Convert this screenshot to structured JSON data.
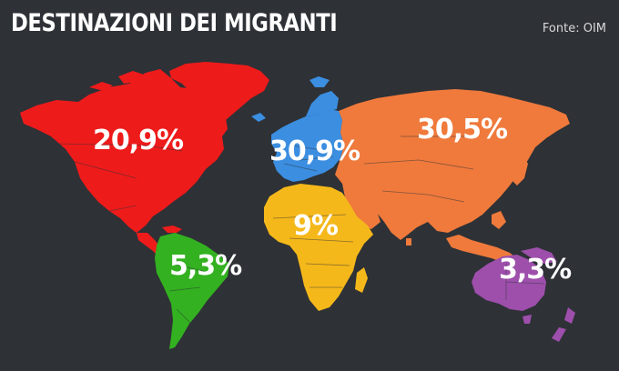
{
  "header": {
    "title": "DESTINAZIONI DEI MIGRANTI",
    "source": "Fonte: OIM"
  },
  "regions": [
    {
      "name": "North America",
      "value_label": "20,9%",
      "color": "#ee1b1b"
    },
    {
      "name": "Europe",
      "value_label": "30,9%",
      "color": "#3b8ee0"
    },
    {
      "name": "Asia",
      "value_label": "30,5%",
      "color": "#ef7a3c"
    },
    {
      "name": "Africa",
      "value_label": "9%",
      "color": "#f5b81a"
    },
    {
      "name": "South America",
      "value_label": "5,3%",
      "color": "#33b120"
    },
    {
      "name": "Oceania",
      "value_label": "3,3%",
      "color": "#9d4fab"
    }
  ],
  "colors": {
    "background": "#2e3136",
    "text": "#ffffff"
  }
}
